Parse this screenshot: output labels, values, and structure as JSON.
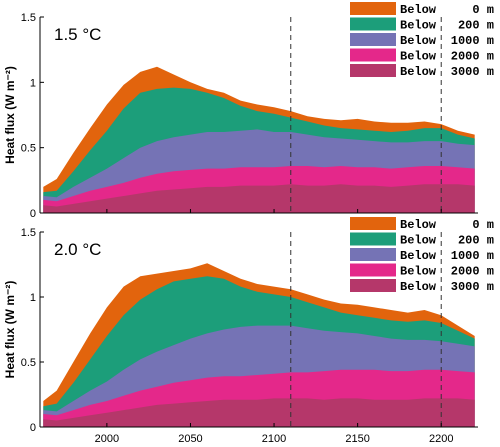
{
  "chart_data": {
    "type": "area",
    "xlim": [
      1960,
      2222
    ],
    "ylim": [
      0,
      1.5
    ],
    "x_ticks": [
      2000,
      2050,
      2100,
      2150,
      2200
    ],
    "y_ticks": [
      0,
      0.5,
      1,
      1.5
    ],
    "shared_xlabel": "",
    "grid": false,
    "legend_position": "top-right",
    "vlines": [
      2110,
      2200
    ],
    "colors": {
      "Below 0 m": "#e2640d",
      "Below 200 m": "#1c9e7a",
      "Below 1000 m": "#7573b5",
      "Below 2000 m": "#e4288a",
      "Below 3000 m": "#b5376a"
    },
    "x": [
      1962,
      1970,
      1980,
      1990,
      2000,
      2010,
      2020,
      2030,
      2040,
      2050,
      2060,
      2070,
      2080,
      2090,
      2100,
      2110,
      2120,
      2130,
      2140,
      2150,
      2160,
      2170,
      2180,
      2190,
      2200,
      2210,
      2220
    ],
    "panels": [
      {
        "label": "1.5 °C",
        "ylabel": "Heat flux (W m⁻²)",
        "legend_labels": [
          "Below",
          "Below",
          "Below",
          "Below",
          "Below"
        ],
        "legend_depths": [
          "0 m",
          "200 m",
          "1000 m",
          "2000 m",
          "3000 m"
        ],
        "series": [
          {
            "name": "Below 3000 m",
            "values": [
              0.06,
              0.05,
              0.07,
              0.09,
              0.11,
              0.13,
              0.15,
              0.17,
              0.18,
              0.19,
              0.2,
              0.2,
              0.21,
              0.21,
              0.21,
              0.22,
              0.21,
              0.21,
              0.22,
              0.21,
              0.21,
              0.2,
              0.21,
              0.22,
              0.22,
              0.22,
              0.21
            ]
          },
          {
            "name": "Below 2000 m",
            "values": [
              0.1,
              0.09,
              0.13,
              0.17,
              0.2,
              0.23,
              0.27,
              0.3,
              0.32,
              0.33,
              0.34,
              0.34,
              0.35,
              0.35,
              0.35,
              0.36,
              0.36,
              0.35,
              0.36,
              0.35,
              0.35,
              0.34,
              0.35,
              0.36,
              0.36,
              0.35,
              0.34
            ]
          },
          {
            "name": "Below 1000 m",
            "values": [
              0.13,
              0.12,
              0.2,
              0.27,
              0.34,
              0.42,
              0.5,
              0.55,
              0.58,
              0.6,
              0.62,
              0.62,
              0.63,
              0.64,
              0.62,
              0.62,
              0.6,
              0.58,
              0.57,
              0.56,
              0.55,
              0.54,
              0.54,
              0.55,
              0.55,
              0.53,
              0.52
            ]
          },
          {
            "name": "Below 200 m",
            "values": [
              0.16,
              0.17,
              0.32,
              0.48,
              0.63,
              0.8,
              0.92,
              0.95,
              0.96,
              0.95,
              0.92,
              0.88,
              0.82,
              0.78,
              0.76,
              0.73,
              0.7,
              0.67,
              0.65,
              0.64,
              0.63,
              0.62,
              0.63,
              0.65,
              0.65,
              0.6,
              0.57
            ]
          },
          {
            "name": "Below 0 m",
            "values": [
              0.2,
              0.26,
              0.46,
              0.65,
              0.83,
              0.98,
              1.08,
              1.12,
              1.06,
              1.0,
              0.95,
              0.92,
              0.86,
              0.83,
              0.81,
              0.78,
              0.74,
              0.72,
              0.71,
              0.72,
              0.7,
              0.69,
              0.69,
              0.7,
              0.68,
              0.63,
              0.6
            ]
          }
        ]
      },
      {
        "label": "2.0 °C",
        "ylabel": "Heat flux (W m⁻²)",
        "legend_labels": [
          "Below",
          "Below",
          "Below",
          "Below",
          "Below"
        ],
        "legend_depths": [
          "0 m",
          "200 m",
          "1000 m",
          "2000 m",
          "3000 m"
        ],
        "series": [
          {
            "name": "Below 3000 m",
            "values": [
              0.06,
              0.05,
              0.07,
              0.09,
              0.11,
              0.13,
              0.15,
              0.17,
              0.18,
              0.19,
              0.2,
              0.21,
              0.21,
              0.21,
              0.22,
              0.22,
              0.22,
              0.21,
              0.22,
              0.22,
              0.21,
              0.21,
              0.21,
              0.22,
              0.22,
              0.22,
              0.21
            ]
          },
          {
            "name": "Below 2000 m",
            "values": [
              0.1,
              0.09,
              0.13,
              0.17,
              0.2,
              0.24,
              0.28,
              0.31,
              0.34,
              0.36,
              0.38,
              0.39,
              0.39,
              0.4,
              0.41,
              0.42,
              0.42,
              0.43,
              0.44,
              0.44,
              0.44,
              0.43,
              0.43,
              0.44,
              0.44,
              0.43,
              0.42
            ]
          },
          {
            "name": "Below 1000 m",
            "values": [
              0.13,
              0.12,
              0.2,
              0.28,
              0.35,
              0.44,
              0.52,
              0.58,
              0.63,
              0.68,
              0.72,
              0.75,
              0.77,
              0.78,
              0.78,
              0.78,
              0.76,
              0.74,
              0.73,
              0.72,
              0.7,
              0.68,
              0.67,
              0.67,
              0.66,
              0.64,
              0.62
            ]
          },
          {
            "name": "Below 200 m",
            "values": [
              0.16,
              0.18,
              0.34,
              0.52,
              0.7,
              0.86,
              0.98,
              1.06,
              1.12,
              1.14,
              1.16,
              1.14,
              1.08,
              1.04,
              1.02,
              1.0,
              0.96,
              0.92,
              0.88,
              0.86,
              0.84,
              0.82,
              0.81,
              0.82,
              0.8,
              0.74,
              0.68
            ]
          },
          {
            "name": "Below 0 m",
            "values": [
              0.2,
              0.28,
              0.5,
              0.72,
              0.92,
              1.08,
              1.16,
              1.18,
              1.2,
              1.22,
              1.26,
              1.2,
              1.14,
              1.1,
              1.08,
              1.06,
              1.02,
              0.98,
              0.95,
              0.94,
              0.92,
              0.9,
              0.88,
              0.9,
              0.86,
              0.78,
              0.7
            ]
          }
        ]
      }
    ]
  }
}
